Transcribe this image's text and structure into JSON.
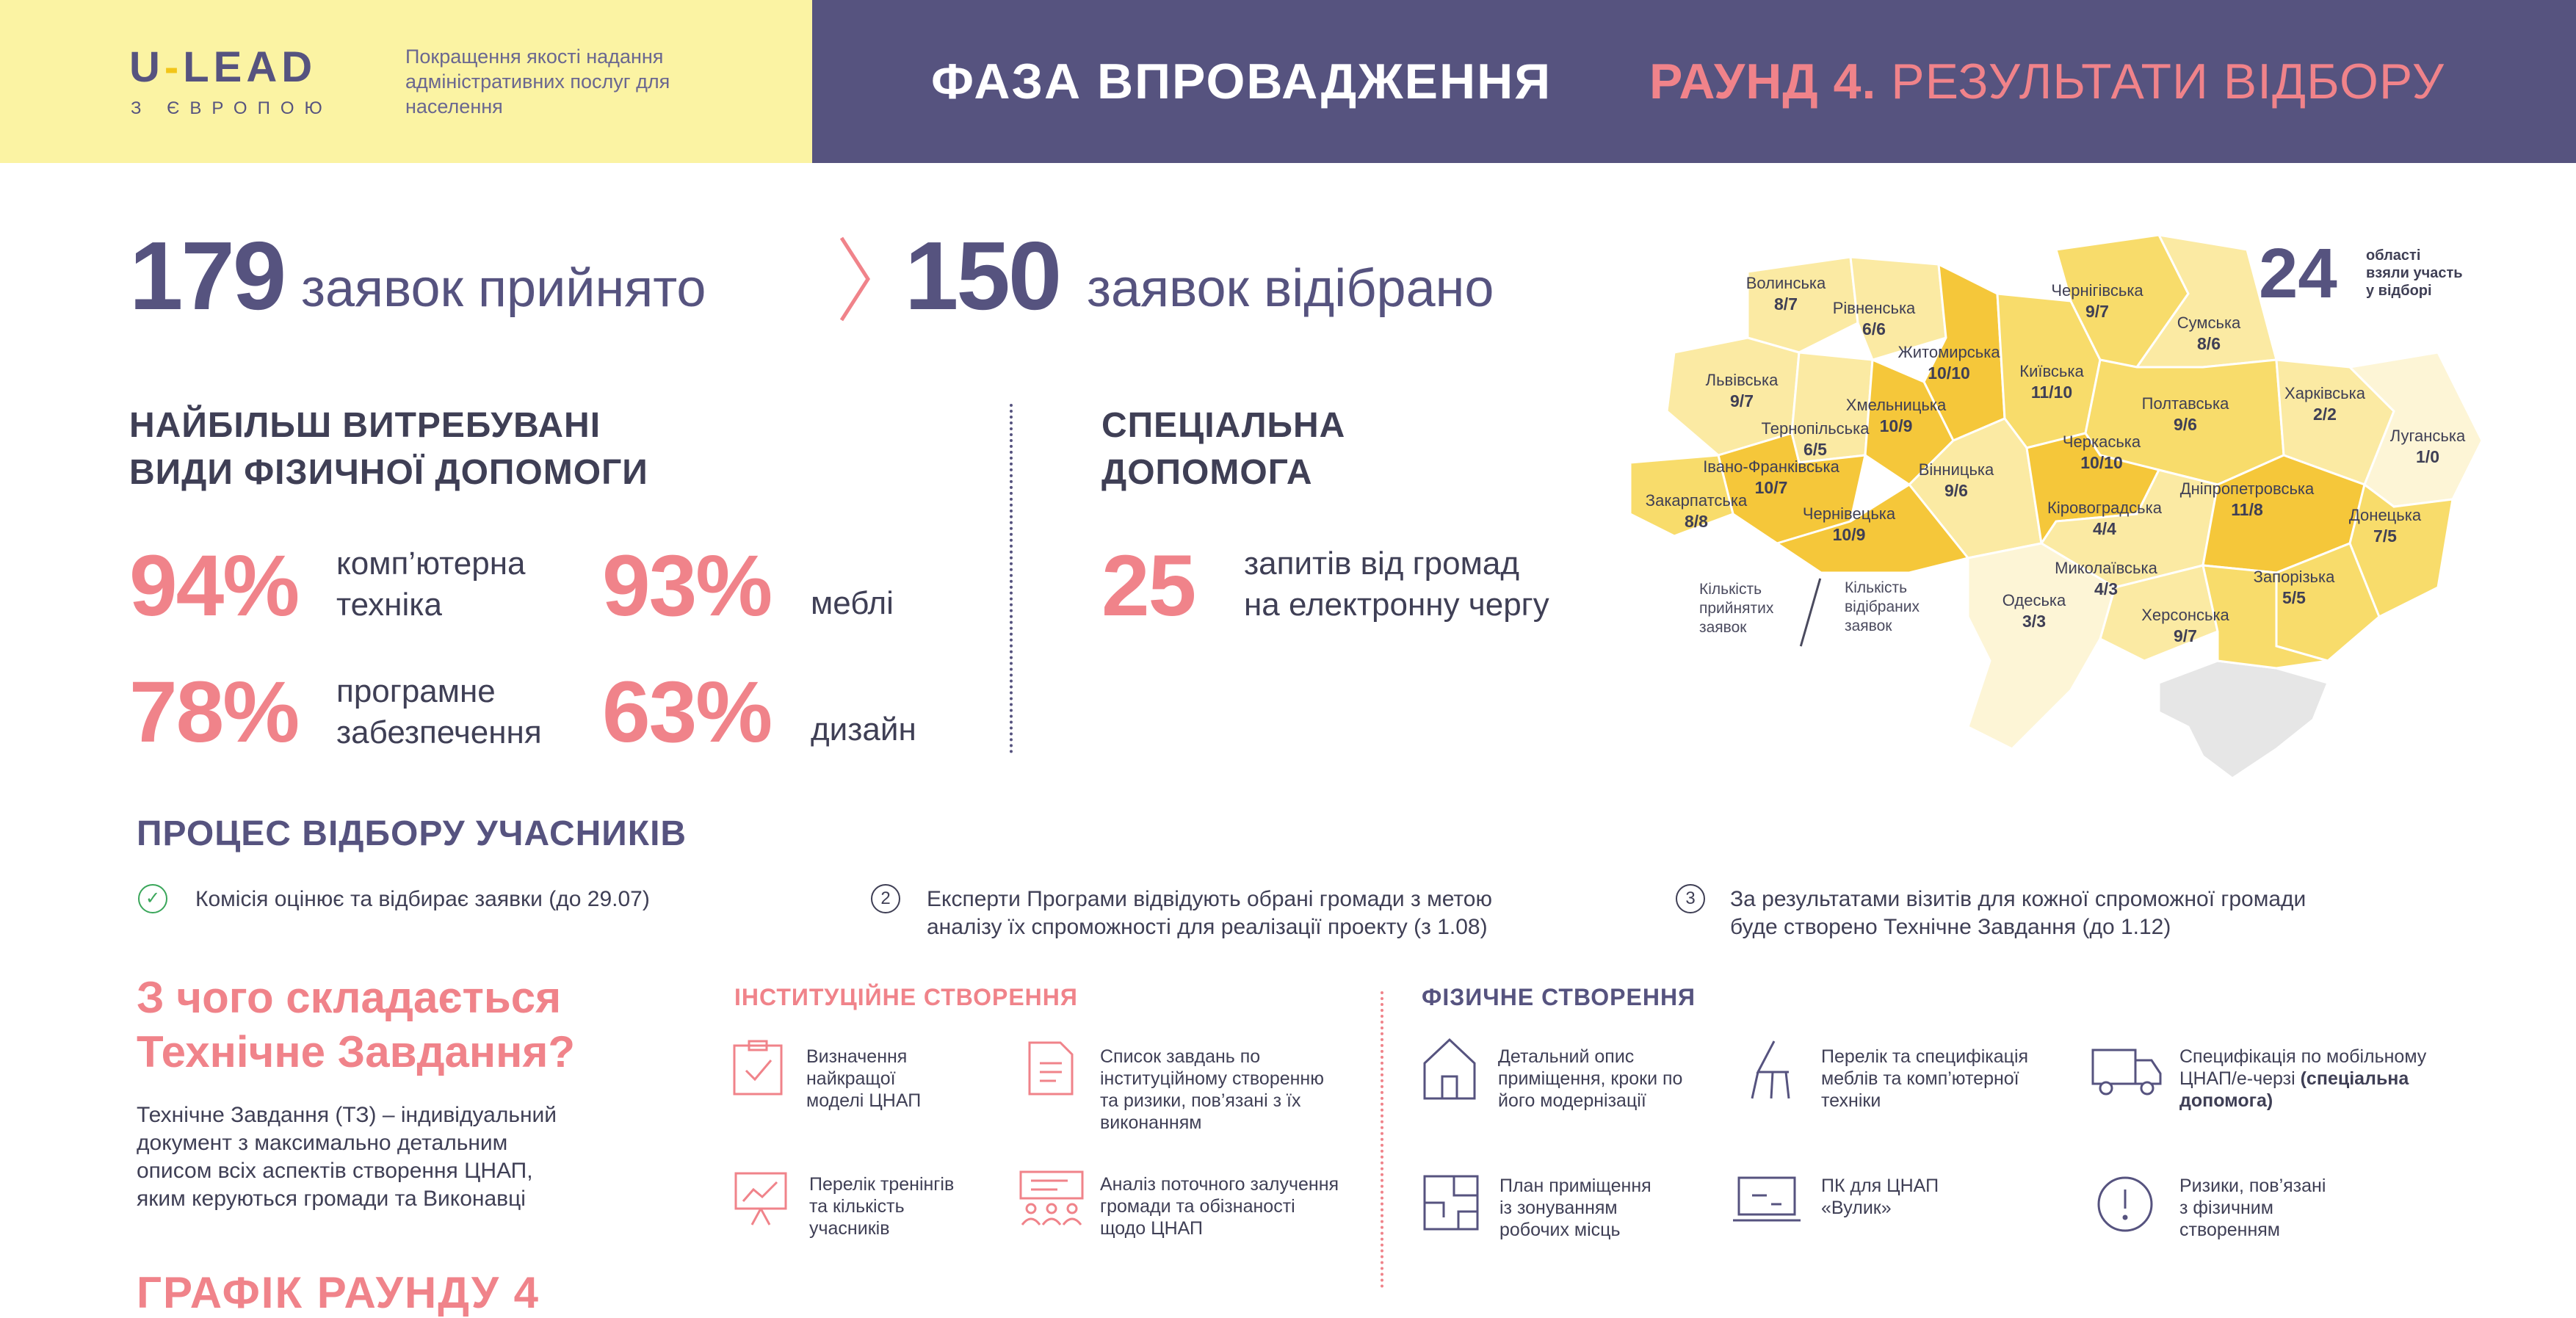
{
  "header": {
    "logo": "U-LEAD",
    "logo_parts": [
      "U",
      "-",
      "LEAD"
    ],
    "logo_sub": "З ЄВРОПОЮ",
    "description": "Покращення якості надання адміністративних послуг для населення",
    "phase_title": "ФАЗА ВПРОВАДЖЕННЯ",
    "round_label": "РАУНД 4.",
    "round_title": "РЕЗУЛЬТАТИ ВІДБОРУ"
  },
  "stats": {
    "accepted_num": "179",
    "accepted_txt": "заявок прийнято",
    "selected_num": "150",
    "selected_txt": "заявок відібрано"
  },
  "physical_help": {
    "title_line1": "НАЙБІЛЬШ ВИТРЕБУВАНІ",
    "title_line2": "ВИДИ ФІЗИЧНОЇ ДОПОМОГИ",
    "items": [
      {
        "pct": "94%",
        "line1": "комп’ютерна",
        "line2": "техніка"
      },
      {
        "pct": "93%",
        "line1": "меблі",
        "line2": ""
      },
      {
        "pct": "78%",
        "line1": "програмне",
        "line2": "забезпечення"
      },
      {
        "pct": "63%",
        "line1": "дизайн",
        "line2": ""
      }
    ]
  },
  "special_help": {
    "title_line1": "СПЕЦІАЛЬНА",
    "title_line2": "ДОПОМОГА",
    "num": "25",
    "line1": "запитів від громад",
    "line2": "на електронну чергу"
  },
  "map": {
    "count": "24",
    "count_label_1": "області",
    "count_label_2": "взяли участь",
    "count_label_3": "у відборі",
    "legend_accepted_1": "Кількість",
    "legend_accepted_2": "прийнятих",
    "legend_accepted_3": "заявок",
    "legend_selected_1": "Кількість",
    "legend_selected_2": "відібраних",
    "legend_selected_3": "заявок",
    "regions": [
      {
        "name": "Волинська",
        "value": "8/7"
      },
      {
        "name": "Рівненська",
        "value": "6/6"
      },
      {
        "name": "Житомирська",
        "value": "10/10"
      },
      {
        "name": "Чернігівська",
        "value": "9/7"
      },
      {
        "name": "Сумська",
        "value": "8/6"
      },
      {
        "name": "Львівська",
        "value": "9/7"
      },
      {
        "name": "Київська",
        "value": "11/10"
      },
      {
        "name": "Хмельницька",
        "value": "10/9"
      },
      {
        "name": "Тернопільська",
        "value": "6/5"
      },
      {
        "name": "Полтавська",
        "value": "9/6"
      },
      {
        "name": "Харківська",
        "value": "2/2"
      },
      {
        "name": "Луганська",
        "value": "1/0"
      },
      {
        "name": "Черкаська",
        "value": "10/10"
      },
      {
        "name": "Івано-Франківська",
        "value": "10/7"
      },
      {
        "name": "Вінницька",
        "value": "9/6"
      },
      {
        "name": "Закарпатська",
        "value": "8/8"
      },
      {
        "name": "Чернівецька",
        "value": "10/9"
      },
      {
        "name": "Кіровоградська",
        "value": "4/4"
      },
      {
        "name": "Дніпропетровська",
        "value": "11/8"
      },
      {
        "name": "Донецька",
        "value": "7/5"
      },
      {
        "name": "Миколаївська",
        "value": "4/3"
      },
      {
        "name": "Запорізька",
        "value": "5/5"
      },
      {
        "name": "Одеська",
        "value": "3/3"
      },
      {
        "name": "Херсонська",
        "value": "9/7"
      }
    ],
    "colors": {
      "high": "#f5c73a",
      "mid": "#f8dc6b",
      "low": "#fbeaa3",
      "lowest": "#fdf5d6",
      "crimea": "#e6e6e6"
    }
  },
  "process": {
    "title": "ПРОЦЕС ВІДБОРУ УЧАСНИКІВ",
    "steps": [
      {
        "icon": "✓",
        "line1": "Комісія оцінює та відбирає заявки (до 29.07)",
        "line2": ""
      },
      {
        "icon": "2",
        "line1": "Експерти Програми відвідують обрані громади з метою",
        "line2": "аналізу їх спроможності для реалізації проекту (з 1.08)"
      },
      {
        "icon": "3",
        "line1": "За результатами візитів для кожної спроможної громади",
        "line2": "буде створено Технічне Завдання (до 1.12)"
      }
    ]
  },
  "tz": {
    "title_line1": "З чого складається",
    "title_line2": "Технічне Завдання?",
    "desc_line1": "Технічне Завдання (ТЗ) – індивідуальний",
    "desc_line2": "документ з максимально детальним",
    "desc_line3": "описом всіх аспектів створення ЦНАП,",
    "desc_line4": "яким керуються громади та Виконавці",
    "schedule_title": "ГРАФІК РАУНДУ 4"
  },
  "institutional": {
    "title": "ІНСТИТУЦІЙНЕ СТВОРЕННЯ",
    "items": [
      {
        "l1": "Визначення",
        "l2": "найкращої",
        "l3": "моделі ЦНАП"
      },
      {
        "l1": "Список завдань по",
        "l2": "інституційному створенню",
        "l3": "та ризики, пов’язані з їх",
        "l4": "виконанням"
      },
      {
        "l1": "Перелік тренінгів",
        "l2": "та кількість",
        "l3": "учасників"
      },
      {
        "l1": "Аналіз поточного залучення",
        "l2": "громади та обізнаності",
        "l3": "щодо ЦНАП"
      }
    ]
  },
  "physical_creation": {
    "title": "ФІЗИЧНЕ СТВОРЕННЯ",
    "items": [
      {
        "l1": "Детальний опис",
        "l2": "приміщення, кроки по",
        "l3": "його модернізації"
      },
      {
        "l1": "Перелік та специфікація",
        "l2": "меблів та комп’ютерної",
        "l3": "техніки"
      },
      {
        "l1": "Специфікація по мобільному",
        "l2": "ЦНАП/е-черзі",
        "l2b": "(спеціальна",
        "l3": "допомога)"
      },
      {
        "l1": "План приміщення",
        "l2": "із зонуванням",
        "l3": "робочих місць"
      },
      {
        "l1": "ПК для ЦНАП",
        "l2": "«Вулик»"
      },
      {
        "l1": "Ризики, пов’язані",
        "l2": "з фізичним",
        "l3": "створенням"
      }
    ]
  }
}
